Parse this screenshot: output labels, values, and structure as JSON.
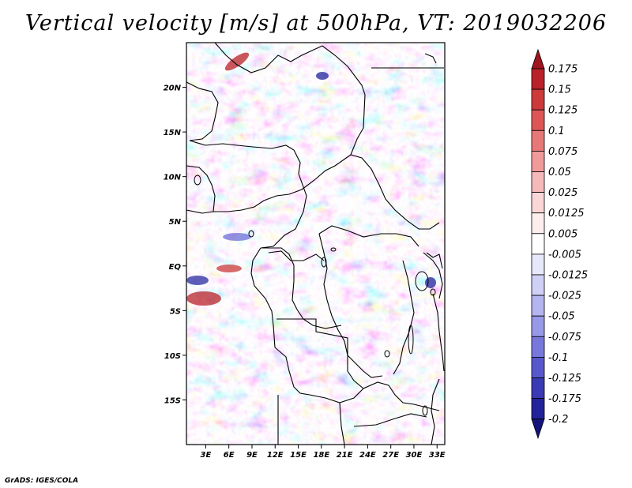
{
  "title": "Vertical velocity [m/s] at 500hPa, VT: 2019032206",
  "credit": "GrADS: IGES/COLA",
  "chart_data": {
    "type": "heatmap",
    "title": "Vertical velocity [m/s] at 500hPa, VT: 2019032206",
    "variable": "Vertical velocity",
    "units": "m/s",
    "level": "500hPa",
    "valid_time": "2019032206",
    "xlabel": "",
    "ylabel": "",
    "x_ticks": [
      "3E",
      "6E",
      "9E",
      "12E",
      "15E",
      "18E",
      "21E",
      "24E",
      "27E",
      "30E",
      "33E"
    ],
    "x_tick_values": [
      3,
      6,
      9,
      12,
      15,
      18,
      21,
      24,
      27,
      30,
      33
    ],
    "y_ticks": [
      "20N",
      "15N",
      "10N",
      "5N",
      "EQ",
      "5S",
      "10S",
      "15S"
    ],
    "y_tick_values": [
      20,
      15,
      10,
      5,
      0,
      -5,
      -10,
      -15
    ],
    "xlim": [
      0.5,
      34
    ],
    "ylim": [
      -20,
      25
    ],
    "colorbar": {
      "labels": [
        "0.175",
        "0.15",
        "0.125",
        "0.1",
        "0.075",
        "0.05",
        "0.025",
        "0.0125",
        "0.005",
        "-0.005",
        "-0.0125",
        "-0.025",
        "-0.05",
        "-0.075",
        "-0.1",
        "-0.125",
        "-0.175",
        "-0.2"
      ],
      "colors": [
        "#a0141e",
        "#b82228",
        "#cc3a3a",
        "#dc5656",
        "#e67878",
        "#f09a9a",
        "#f6b9b9",
        "#fbd6d6",
        "#fdeeee",
        "#ffffff",
        "#e8e8fb",
        "#d0d0f6",
        "#b4b4f0",
        "#9898e8",
        "#7878dc",
        "#5858cc",
        "#3a3ab4",
        "#22229a",
        "#14147a"
      ]
    }
  }
}
